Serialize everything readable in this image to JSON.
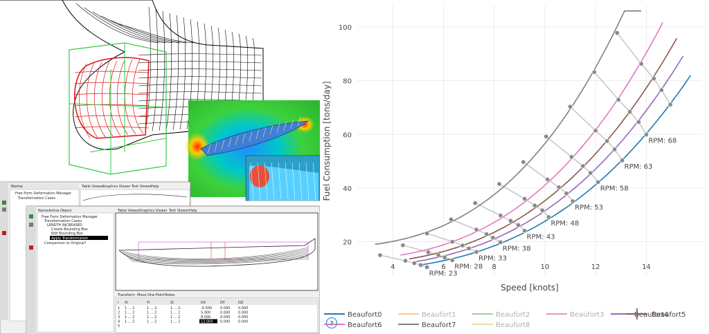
{
  "software": {
    "window1": {
      "header": "Norma",
      "tree": [
        "Free Form Deformation Manager",
        "Transformation Cases"
      ],
      "tabs": [
        "Table Viewer",
        "Graphics Viewer",
        "Text Viewer",
        "Help"
      ]
    },
    "window2": {
      "header_tabs": [
        "Name",
        "Active Object"
      ],
      "tree": [
        "Free Form Deformation Manager",
        "Transformation Cases",
        "LENGTH INCREASED",
        "Create Bounding Box",
        "Edit Bounding Box",
        "Apply Transformation",
        "Comparison to Original?"
      ],
      "viewer_tabs": [
        "Table Viewer",
        "Graphics Viewer",
        "Text Viewer",
        "Help"
      ],
      "table_tabs": [
        "Transform",
        "Move One Point",
        "Notes"
      ],
      "table_rows": [
        {
          "i": "1",
          "xi": "1 ... 2",
          "yi": "1 ... 2",
          "zi": "1 ... 2",
          "dx": "-0.500",
          "dy": "0.000",
          "dz": "0.000"
        },
        {
          "i": "2",
          "xi": "1 ... 2",
          "yi": "1 ... 2",
          "zi": "1 ... 2",
          "dx": "5.000",
          "dy": "0.000",
          "dz": "0.000"
        },
        {
          "i": "3",
          "xi": "1 ... 2",
          "yi": "1 ... 2",
          "zi": "1 ... 2",
          "dx": "8.000",
          "dy": "0.000",
          "dz": "0.000"
        },
        {
          "i": "4",
          "xi": "1 ... 2",
          "yi": "1 ... 2",
          "zi": "1 ... 2",
          "dx": "13.000",
          "dy": "0.000",
          "dz": "0.000"
        },
        {
          "i": "5",
          "xi": "",
          "yi": "",
          "zi": "",
          "dx": "",
          "dy": "",
          "dz": ""
        }
      ]
    }
  },
  "chart_data": {
    "type": "line",
    "xlabel": "Speed [knots]",
    "ylabel": "Fuel Consumption [tons/day]",
    "xlim": [
      2.6,
      16.2
    ],
    "ylim": [
      7,
      108
    ],
    "xticks": [
      4,
      6,
      8,
      10,
      12,
      14
    ],
    "yticks": [
      20,
      40,
      60,
      80,
      100
    ],
    "grid": true,
    "legend_position": "bottom",
    "help_icon": "question-circle-icon",
    "series": [
      {
        "name": "Beaufort0",
        "color": "#1f77b4",
        "visible": true,
        "x_start": 5.1,
        "x_end": 15.75,
        "points": [
          [
            5.35,
            10.5
          ],
          [
            6.35,
            13.1
          ],
          [
            7.3,
            16.2
          ],
          [
            8.25,
            19.8
          ],
          [
            9.2,
            24.1
          ],
          [
            10.15,
            29.2
          ],
          [
            11.1,
            35.1
          ],
          [
            12.1,
            42.2
          ],
          [
            13.05,
            50.3
          ],
          [
            14.0,
            59.9
          ],
          [
            14.95,
            71.1
          ]
        ]
      },
      {
        "name": "Beaufort1",
        "color": "#ff7f0e",
        "visible": false
      },
      {
        "name": "Beaufort2",
        "color": "#2ca02c",
        "visible": false
      },
      {
        "name": "Beaufort3",
        "color": "#d62728",
        "visible": false
      },
      {
        "name": "Beaufort4",
        "color": "#9467bd",
        "visible": true,
        "x_start": 4.85,
        "x_end": 15.45,
        "points": [
          [
            5.1,
            11.3
          ],
          [
            6.05,
            14.1
          ],
          [
            7.0,
            17.5
          ],
          [
            7.95,
            21.5
          ],
          [
            8.95,
            26.2
          ],
          [
            9.9,
            31.7
          ],
          [
            10.85,
            38.0
          ],
          [
            11.8,
            45.6
          ],
          [
            12.75,
            54.4
          ],
          [
            13.7,
            64.6
          ],
          [
            14.6,
            76.5
          ]
        ]
      },
      {
        "name": "Beaufort5",
        "color": "#8c564b",
        "visible": true,
        "x_start": 4.65,
        "x_end": 15.2,
        "points": [
          [
            4.85,
            12.0
          ],
          [
            5.8,
            15.0
          ],
          [
            6.75,
            18.6
          ],
          [
            7.7,
            22.8
          ],
          [
            8.65,
            27.8
          ],
          [
            9.6,
            33.5
          ],
          [
            10.55,
            40.3
          ],
          [
            11.5,
            48.2
          ],
          [
            12.45,
            57.5
          ],
          [
            13.35,
            68.4
          ],
          [
            14.3,
            80.8
          ]
        ]
      },
      {
        "name": "Beaufort6",
        "color": "#e377c2",
        "visible": true,
        "x_start": 4.3,
        "x_end": 14.65,
        "points": [
          [
            4.5,
            12.9
          ],
          [
            5.4,
            16.1
          ],
          [
            6.35,
            20.0
          ],
          [
            7.3,
            24.5
          ],
          [
            8.25,
            29.8
          ],
          [
            9.2,
            36.0
          ],
          [
            10.1,
            43.2
          ],
          [
            11.05,
            51.6
          ],
          [
            12.0,
            61.4
          ],
          [
            12.9,
            72.9
          ],
          [
            13.8,
            86.3
          ]
        ]
      },
      {
        "name": "Beaufort7",
        "color": "#7f7f7f",
        "visible": true,
        "x_start": 3.3,
        "x_end": 13.8,
        "points": [
          [
            3.5,
            15.0
          ],
          [
            4.4,
            18.7
          ],
          [
            5.35,
            23.1
          ],
          [
            6.3,
            28.3
          ],
          [
            7.25,
            34.4
          ],
          [
            8.2,
            41.5
          ],
          [
            9.15,
            49.7
          ],
          [
            10.05,
            59.2
          ],
          [
            11.0,
            70.3
          ],
          [
            11.95,
            83.2
          ],
          [
            12.85,
            97.8
          ]
        ]
      },
      {
        "name": "Beaufort8",
        "color": "#bcbd22",
        "visible": false
      }
    ],
    "rpm_labels": [
      "RPM: 23",
      "RPM: 28",
      "RPM: 33",
      "RPM: 38",
      "RPM: 43",
      "RPM: 48",
      "RPM: 53",
      "RPM: 58",
      "RPM: 63",
      "RPM: 68"
    ]
  }
}
